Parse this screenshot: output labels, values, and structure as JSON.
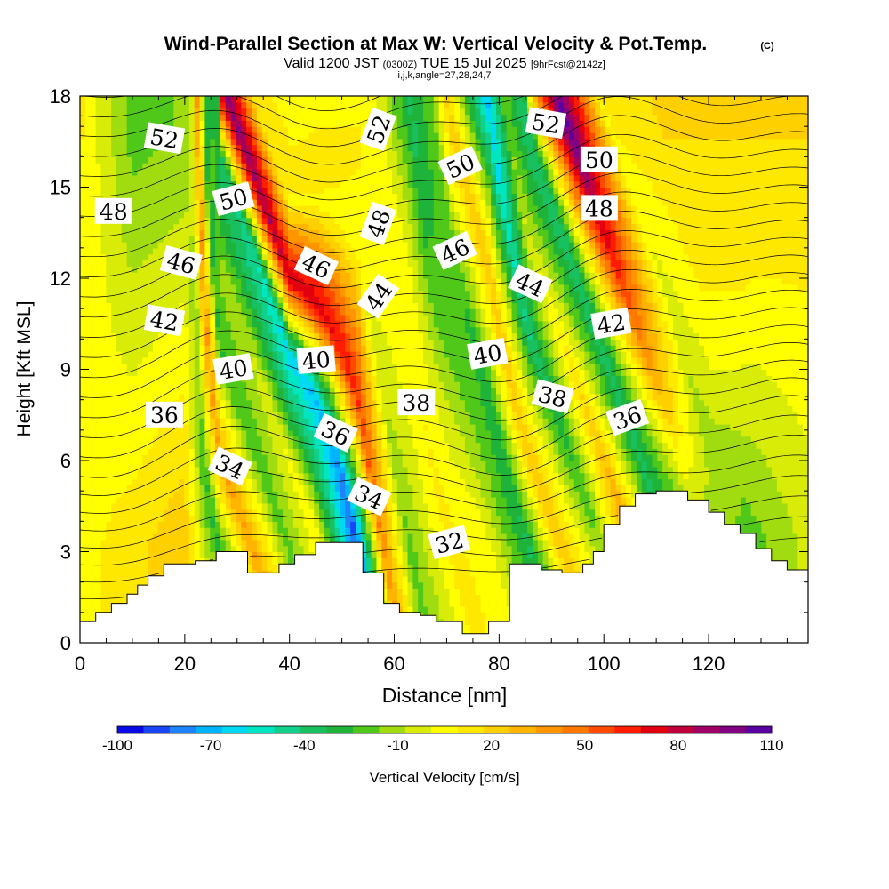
{
  "chart_data": {
    "type": "heatmap",
    "title": "Wind-Parallel Section at Max W: Vertical Velocity & Pot.Temp.",
    "title_mark": "(C)",
    "subtitle": {
      "valid": "Valid 1200 JST",
      "utc": "(0300Z)",
      "date": "TUE 15 Jul 2025",
      "forecast": "[9hrFcst@2142z]"
    },
    "indices": "i,j,k,angle=27,28,24,7",
    "xlabel": "Distance [nm]",
    "ylabel": "Height [Kft MSL]",
    "xlim": [
      0,
      139
    ],
    "ylim": [
      0,
      18
    ],
    "x_ticks": [
      "0",
      "20",
      "40",
      "60",
      "80",
      "100",
      "120"
    ],
    "y_ticks": [
      "0",
      "3",
      "6",
      "9",
      "12",
      "15",
      "18"
    ],
    "colorbar": {
      "label": "Vertical Velocity [cm/s]",
      "tick_labels": [
        "-100",
        "-70",
        "-40",
        "-10",
        "20",
        "50",
        "80",
        "110"
      ],
      "colors": [
        "#0a0ae6",
        "#1a46f5",
        "#1e82f8",
        "#00b4ff",
        "#00d9f2",
        "#00e6c0",
        "#10d08a",
        "#18c060",
        "#1fb33a",
        "#50c81a",
        "#a0dc10",
        "#d8ec08",
        "#ffff00",
        "#ffe800",
        "#ffd000",
        "#ffb400",
        "#ff9600",
        "#ff7800",
        "#ff4a00",
        "#ff1c00",
        "#e20010",
        "#c0003a",
        "#9e0064",
        "#820082",
        "#5a00a0"
      ]
    },
    "vertical_velocity_bands": [
      {
        "x": 0,
        "w_at_3kft": 5,
        "w_at_15kft": 10,
        "slope": 0
      },
      {
        "x": 10,
        "w_at_3kft": 15,
        "w_at_15kft": -15,
        "slope": 0
      },
      {
        "x": 20,
        "w_at_3kft": 25,
        "w_at_15kft": -10,
        "slope": 0
      },
      {
        "x": 27,
        "w_at_3kft": -30,
        "w_at_15kft": -5,
        "slope": -2
      },
      {
        "x": 33,
        "w_at_3kft": 35,
        "w_at_15kft": 40,
        "slope": -2
      },
      {
        "x": 40,
        "w_at_3kft": -20,
        "w_at_15kft": -30,
        "slope": -2
      },
      {
        "x": 46,
        "w_at_3kft": 10,
        "w_at_15kft": -20,
        "slope": -1.5
      },
      {
        "x": 53,
        "w_at_3kft": -90,
        "w_at_15kft": -40,
        "slope": -1
      },
      {
        "x": 58,
        "w_at_3kft": 40,
        "w_at_15kft": 90,
        "slope": -1
      },
      {
        "x": 63,
        "w_at_3kft": -20,
        "w_at_15kft": 10,
        "slope": -1
      },
      {
        "x": 71,
        "w_at_3kft": 12,
        "w_at_15kft": 5,
        "slope": -1.5
      },
      {
        "x": 78,
        "w_at_3kft": 5,
        "w_at_15kft": -30,
        "slope": -1.5
      },
      {
        "x": 86,
        "w_at_3kft": -35,
        "w_at_15kft": -20,
        "slope": -2
      },
      {
        "x": 92,
        "w_at_3kft": 25,
        "w_at_15kft": 25,
        "slope": -2
      },
      {
        "x": 100,
        "w_at_3kft": -15,
        "w_at_15kft": -60,
        "slope": -2
      },
      {
        "x": 106,
        "w_at_3kft": 40,
        "w_at_15kft": -10,
        "slope": -2
      },
      {
        "x": 113,
        "w_at_3kft": -35,
        "w_at_15kft": -40,
        "slope": -2
      },
      {
        "x": 121,
        "w_at_3kft": -20,
        "w_at_15kft": 90,
        "slope": -2.5
      },
      {
        "x": 129,
        "w_at_3kft": -20,
        "w_at_15kft": 5,
        "slope": -1
      },
      {
        "x": 139,
        "w_at_3kft": -5,
        "w_at_15kft": 15,
        "slope": 0
      }
    ],
    "terrain": [
      [
        0,
        0.7
      ],
      [
        3,
        0.7
      ],
      [
        3,
        1.0
      ],
      [
        6,
        1.0
      ],
      [
        6,
        1.3
      ],
      [
        9,
        1.3
      ],
      [
        9,
        1.6
      ],
      [
        11,
        1.6
      ],
      [
        11,
        1.9
      ],
      [
        13,
        1.9
      ],
      [
        13,
        2.2
      ],
      [
        16,
        2.2
      ],
      [
        16,
        2.6
      ],
      [
        22,
        2.6
      ],
      [
        22,
        2.7
      ],
      [
        26,
        2.7
      ],
      [
        26,
        3.0
      ],
      [
        32,
        3.0
      ],
      [
        32,
        2.3
      ],
      [
        38,
        2.3
      ],
      [
        38,
        2.6
      ],
      [
        41,
        2.6
      ],
      [
        41,
        2.9
      ],
      [
        45,
        2.9
      ],
      [
        45,
        3.3
      ],
      [
        54,
        3.3
      ],
      [
        54,
        2.3
      ],
      [
        58,
        2.3
      ],
      [
        58,
        1.3
      ],
      [
        61,
        1.3
      ],
      [
        61,
        1.0
      ],
      [
        65,
        1.0
      ],
      [
        65,
        0.9
      ],
      [
        68,
        0.9
      ],
      [
        68,
        0.7
      ],
      [
        73,
        0.7
      ],
      [
        73,
        0.3
      ],
      [
        78,
        0.3
      ],
      [
        78,
        0.7
      ],
      [
        82,
        0.7
      ],
      [
        82,
        2.6
      ],
      [
        88,
        2.6
      ],
      [
        88,
        2.4
      ],
      [
        92,
        2.4
      ],
      [
        92,
        2.3
      ],
      [
        96,
        2.3
      ],
      [
        96,
        2.6
      ],
      [
        98,
        2.6
      ],
      [
        98,
        3.0
      ],
      [
        100,
        3.0
      ],
      [
        100,
        3.9
      ],
      [
        103,
        3.9
      ],
      [
        103,
        4.5
      ],
      [
        106,
        4.5
      ],
      [
        106,
        4.9
      ],
      [
        110,
        4.9
      ],
      [
        110,
        5.0
      ],
      [
        116,
        5.0
      ],
      [
        116,
        4.7
      ],
      [
        120,
        4.7
      ],
      [
        120,
        4.3
      ],
      [
        123,
        4.3
      ],
      [
        123,
        3.9
      ],
      [
        126,
        3.9
      ],
      [
        126,
        3.6
      ],
      [
        129,
        3.6
      ],
      [
        129,
        3.1
      ],
      [
        132,
        3.1
      ],
      [
        132,
        2.7
      ],
      [
        135,
        2.7
      ],
      [
        135,
        2.4
      ],
      [
        139,
        2.4
      ]
    ],
    "theta_contours": [
      {
        "label": "32",
        "x": 70.5,
        "y": 3.3,
        "angle": -15
      },
      {
        "label": "34",
        "x": 28.6,
        "y": 5.8,
        "angle": 25
      },
      {
        "label": "34",
        "x": 55.2,
        "y": 4.8,
        "angle": 25
      },
      {
        "label": "36",
        "x": 16.1,
        "y": 7.5,
        "angle": 0
      },
      {
        "label": "36",
        "x": 48.8,
        "y": 6.9,
        "angle": 25
      },
      {
        "label": "36",
        "x": 104.5,
        "y": 7.4,
        "angle": -20
      },
      {
        "label": "38",
        "x": 64.2,
        "y": 7.9,
        "angle": 0
      },
      {
        "label": "38",
        "x": 90.2,
        "y": 8.1,
        "angle": 15
      },
      {
        "label": "40",
        "x": 29.3,
        "y": 9.0,
        "angle": -10
      },
      {
        "label": "40",
        "x": 45.1,
        "y": 9.3,
        "angle": -5
      },
      {
        "label": "40",
        "x": 77.8,
        "y": 9.5,
        "angle": -10
      },
      {
        "label": "42",
        "x": 16.1,
        "y": 10.6,
        "angle": 10
      },
      {
        "label": "42",
        "x": 101.4,
        "y": 10.5,
        "angle": -10
      },
      {
        "label": "44",
        "x": 57.0,
        "y": 11.4,
        "angle": -55
      },
      {
        "label": "44",
        "x": 85.9,
        "y": 11.8,
        "angle": 25
      },
      {
        "label": "46",
        "x": 19.3,
        "y": 12.5,
        "angle": 15
      },
      {
        "label": "46",
        "x": 45.1,
        "y": 12.4,
        "angle": 25
      },
      {
        "label": "46",
        "x": 71.6,
        "y": 12.9,
        "angle": -25
      },
      {
        "label": "48",
        "x": 6.4,
        "y": 14.2,
        "angle": 0
      },
      {
        "label": "48",
        "x": 57.0,
        "y": 13.8,
        "angle": -70
      },
      {
        "label": "48",
        "x": 99.1,
        "y": 14.3,
        "angle": 0
      },
      {
        "label": "50",
        "x": 29.3,
        "y": 14.6,
        "angle": -15
      },
      {
        "label": "50",
        "x": 72.6,
        "y": 15.7,
        "angle": -25
      },
      {
        "label": "50",
        "x": 99.1,
        "y": 15.9,
        "angle": 0
      },
      {
        "label": "52",
        "x": 16.1,
        "y": 16.6,
        "angle": 10
      },
      {
        "label": "52",
        "x": 57.0,
        "y": 16.9,
        "angle": -70
      },
      {
        "label": "52",
        "x": 88.9,
        "y": 17.1,
        "angle": 10
      }
    ]
  }
}
